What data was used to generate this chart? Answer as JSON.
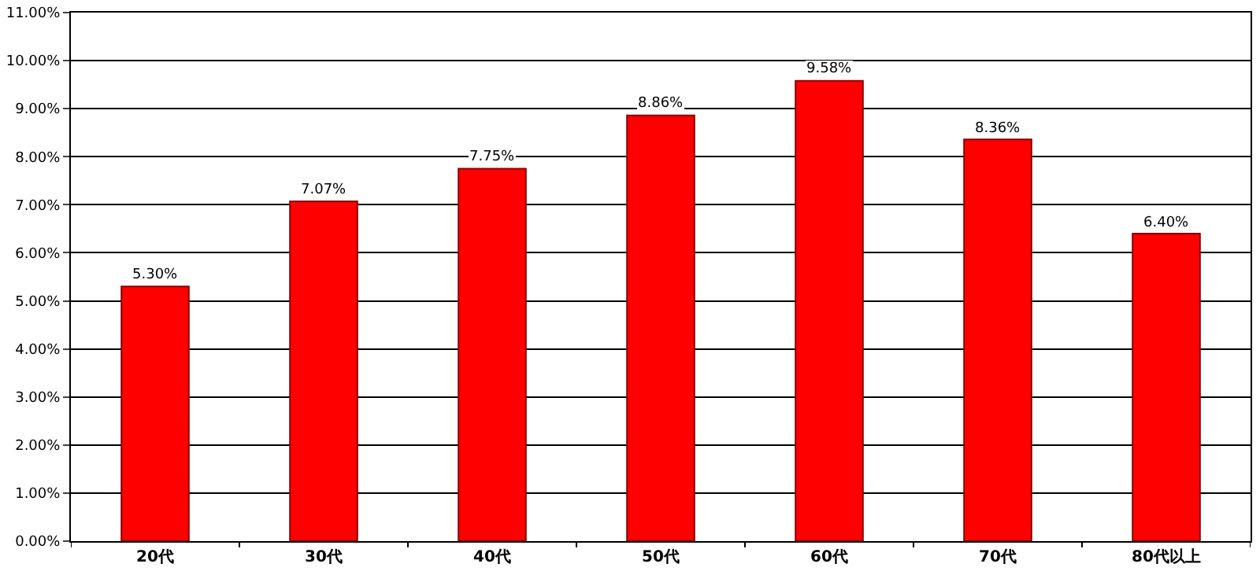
{
  "chart_data": {
    "type": "bar",
    "categories": [
      "20代",
      "30代",
      "40代",
      "50代",
      "60代",
      "70代",
      "80代以上"
    ],
    "values": [
      5.3,
      7.07,
      7.75,
      8.86,
      9.58,
      8.36,
      6.4
    ],
    "value_labels": [
      "5.30%",
      "7.07%",
      "7.75%",
      "8.86%",
      "9.58%",
      "8.36%",
      "6.40%"
    ],
    "color": "#ff0000",
    "ylim": [
      0,
      11
    ],
    "yticks": [
      {
        "value": 0,
        "label": "0.00%"
      },
      {
        "value": 1,
        "label": "1.00%"
      },
      {
        "value": 2,
        "label": "2.00%"
      },
      {
        "value": 3,
        "label": "3.00%"
      },
      {
        "value": 4,
        "label": "4.00%"
      },
      {
        "value": 5,
        "label": "5.00%"
      },
      {
        "value": 6,
        "label": "6.00%"
      },
      {
        "value": 7,
        "label": "7.00%"
      },
      {
        "value": 8,
        "label": "8.00%"
      },
      {
        "value": 9,
        "label": "9.00%"
      },
      {
        "value": 10,
        "label": "10.00%"
      },
      {
        "value": 11,
        "label": "11.00%"
      }
    ],
    "grid": "y"
  }
}
